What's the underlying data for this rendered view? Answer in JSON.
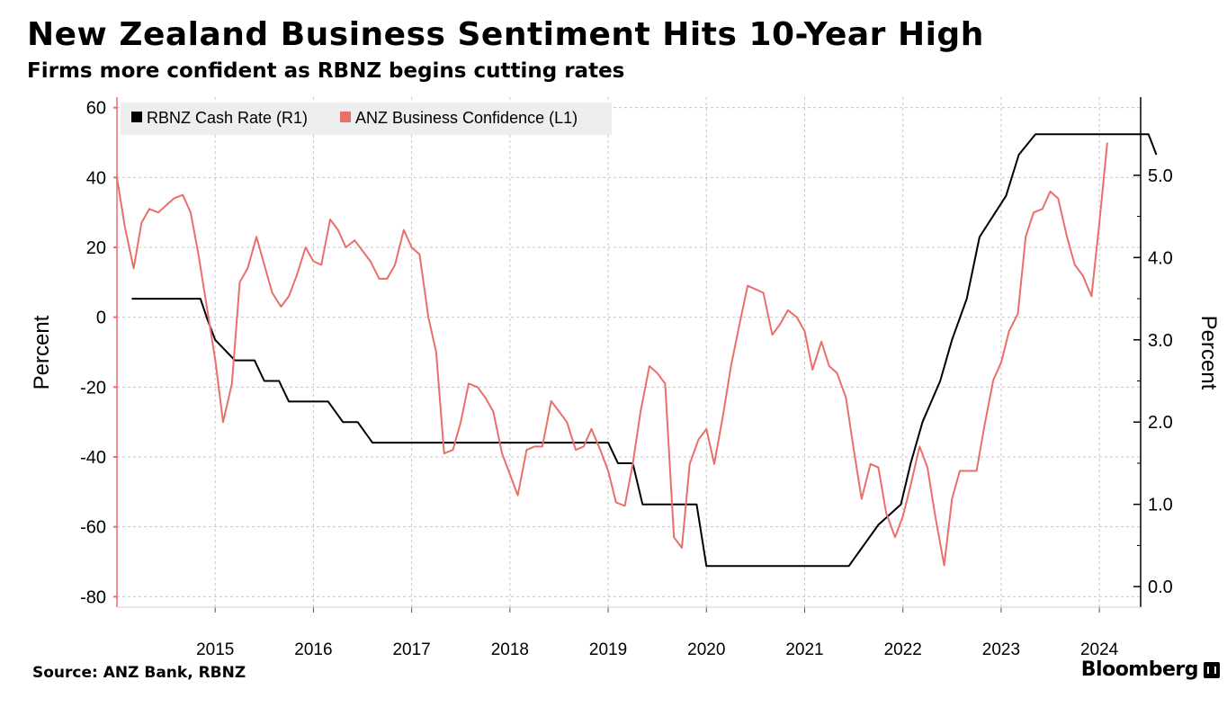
{
  "title": "New Zealand Business Sentiment Hits 10-Year High",
  "subtitle": "Firms more confident as RBNZ begins cutting rates",
  "source": "Source: ANZ Bank, RBNZ",
  "brand": "Bloomberg",
  "colors": {
    "cash_rate": "#000000",
    "confidence": "#e8706b",
    "grid": "#c8c8c8",
    "legend_bg": "#eeeeee"
  },
  "chart_data": {
    "type": "line",
    "legend_position": "top-left",
    "grid": true,
    "x_ticks": [
      "2015",
      "2016",
      "2017",
      "2018",
      "2019",
      "2020",
      "2021",
      "2022",
      "2023",
      "2024"
    ],
    "left_axis": {
      "label": "Percent",
      "ticks": [
        "60",
        "40",
        "20",
        "0",
        "-20",
        "-40",
        "-60",
        "-80"
      ],
      "ylim": [
        -83,
        63
      ]
    },
    "right_axis": {
      "label": "Percent",
      "ticks": [
        "5.0",
        "4.0",
        "3.0",
        "2.0",
        "1.0",
        "0.0"
      ],
      "ylim": [
        -0.25,
        5.95
      ]
    },
    "series": [
      {
        "name": "RBNZ Cash Rate (R1)",
        "axis": "right",
        "points": [
          [
            2014.15,
            3.5
          ],
          [
            2014.85,
            3.5
          ],
          [
            2014.92,
            3.25
          ],
          [
            2015.0,
            3.0
          ],
          [
            2015.2,
            2.75
          ],
          [
            2015.4,
            2.75
          ],
          [
            2015.5,
            2.5
          ],
          [
            2015.65,
            2.5
          ],
          [
            2015.75,
            2.25
          ],
          [
            2016.15,
            2.25
          ],
          [
            2016.3,
            2.0
          ],
          [
            2016.45,
            2.0
          ],
          [
            2016.6,
            1.75
          ],
          [
            2019.0,
            1.75
          ],
          [
            2019.1,
            1.5
          ],
          [
            2019.25,
            1.5
          ],
          [
            2019.35,
            1.0
          ],
          [
            2019.9,
            1.0
          ],
          [
            2020.0,
            0.25
          ],
          [
            2021.45,
            0.25
          ],
          [
            2021.75,
            0.75
          ],
          [
            2021.98,
            1.0
          ],
          [
            2022.08,
            1.5
          ],
          [
            2022.2,
            2.0
          ],
          [
            2022.38,
            2.5
          ],
          [
            2022.5,
            3.0
          ],
          [
            2022.65,
            3.5
          ],
          [
            2022.78,
            4.25
          ],
          [
            2023.05,
            4.75
          ],
          [
            2023.18,
            5.25
          ],
          [
            2023.35,
            5.5
          ],
          [
            2024.5,
            5.5
          ],
          [
            2024.58,
            5.25
          ]
        ]
      },
      {
        "name": "ANZ Business Confidence (L1)",
        "axis": "left",
        "points": [
          [
            2014.0,
            40
          ],
          [
            2014.08,
            26
          ],
          [
            2014.17,
            14
          ],
          [
            2014.25,
            27
          ],
          [
            2014.33,
            31
          ],
          [
            2014.42,
            30
          ],
          [
            2014.5,
            32
          ],
          [
            2014.58,
            34
          ],
          [
            2014.67,
            35
          ],
          [
            2014.75,
            30
          ],
          [
            2014.83,
            18
          ],
          [
            2014.92,
            2
          ],
          [
            2015.0,
            -12
          ],
          [
            2015.08,
            -30
          ],
          [
            2015.17,
            -19
          ],
          [
            2015.25,
            10
          ],
          [
            2015.33,
            14
          ],
          [
            2015.42,
            23
          ],
          [
            2015.5,
            15
          ],
          [
            2015.58,
            7
          ],
          [
            2015.67,
            3
          ],
          [
            2015.75,
            6
          ],
          [
            2015.83,
            12
          ],
          [
            2015.92,
            20
          ],
          [
            2016.0,
            16
          ],
          [
            2016.08,
            15
          ],
          [
            2016.17,
            28
          ],
          [
            2016.25,
            25
          ],
          [
            2016.33,
            20
          ],
          [
            2016.42,
            22
          ],
          [
            2016.5,
            19
          ],
          [
            2016.58,
            16
          ],
          [
            2016.67,
            11
          ],
          [
            2016.75,
            11
          ],
          [
            2016.83,
            15
          ],
          [
            2016.92,
            25
          ],
          [
            2017.0,
            20
          ],
          [
            2017.08,
            18
          ],
          [
            2017.17,
            0
          ],
          [
            2017.25,
            -10
          ],
          [
            2017.33,
            -39
          ],
          [
            2017.42,
            -38
          ],
          [
            2017.5,
            -30
          ],
          [
            2017.58,
            -19
          ],
          [
            2017.67,
            -20
          ],
          [
            2017.75,
            -23
          ],
          [
            2017.83,
            -27
          ],
          [
            2017.92,
            -39
          ],
          [
            2018.0,
            -45
          ],
          [
            2018.08,
            -51
          ],
          [
            2018.17,
            -38
          ],
          [
            2018.25,
            -37
          ],
          [
            2018.33,
            -37
          ],
          [
            2018.42,
            -24
          ],
          [
            2018.5,
            -27
          ],
          [
            2018.58,
            -30
          ],
          [
            2018.67,
            -38
          ],
          [
            2018.75,
            -37
          ],
          [
            2018.83,
            -32
          ],
          [
            2018.92,
            -38
          ],
          [
            2019.0,
            -44
          ],
          [
            2019.08,
            -53
          ],
          [
            2019.17,
            -54
          ],
          [
            2019.25,
            -42
          ],
          [
            2019.33,
            -27
          ],
          [
            2019.42,
            -14
          ],
          [
            2019.5,
            -16
          ],
          [
            2019.58,
            -19
          ],
          [
            2019.67,
            -63
          ],
          [
            2019.75,
            -66
          ],
          [
            2019.83,
            -42
          ],
          [
            2019.92,
            -35
          ],
          [
            2020.0,
            -32
          ],
          [
            2020.08,
            -42
          ],
          [
            2020.17,
            -28
          ],
          [
            2020.25,
            -14
          ],
          [
            2020.33,
            -3
          ],
          [
            2020.42,
            9
          ],
          [
            2020.5,
            8
          ],
          [
            2020.58,
            7
          ],
          [
            2020.67,
            -5
          ],
          [
            2020.75,
            -2
          ],
          [
            2020.83,
            2
          ],
          [
            2020.92,
            0
          ],
          [
            2021.0,
            -4
          ],
          [
            2021.08,
            -15
          ],
          [
            2021.17,
            -7
          ],
          [
            2021.25,
            -14
          ],
          [
            2021.33,
            -16
          ],
          [
            2021.42,
            -23
          ],
          [
            2021.5,
            -38
          ],
          [
            2021.58,
            -52
          ],
          [
            2021.67,
            -42
          ],
          [
            2021.75,
            -43
          ],
          [
            2021.83,
            -56
          ],
          [
            2021.92,
            -63
          ],
          [
            2022.0,
            -57
          ],
          [
            2022.08,
            -48
          ],
          [
            2022.17,
            -37
          ],
          [
            2022.25,
            -43
          ],
          [
            2022.33,
            -57
          ],
          [
            2022.42,
            -71
          ],
          [
            2022.5,
            -52
          ],
          [
            2022.58,
            -44
          ],
          [
            2022.67,
            -44
          ],
          [
            2022.75,
            -44
          ],
          [
            2022.83,
            -31
          ],
          [
            2022.92,
            -18
          ],
          [
            2023.0,
            -13
          ],
          [
            2023.08,
            -4
          ],
          [
            2023.17,
            1
          ],
          [
            2023.25,
            23
          ],
          [
            2023.33,
            30
          ],
          [
            2023.42,
            31
          ],
          [
            2023.5,
            36
          ],
          [
            2023.58,
            34
          ],
          [
            2023.67,
            23
          ],
          [
            2023.75,
            15
          ],
          [
            2023.83,
            12
          ],
          [
            2023.92,
            6
          ],
          [
            2024.0,
            27
          ],
          [
            2024.08,
            50
          ]
        ]
      }
    ]
  }
}
